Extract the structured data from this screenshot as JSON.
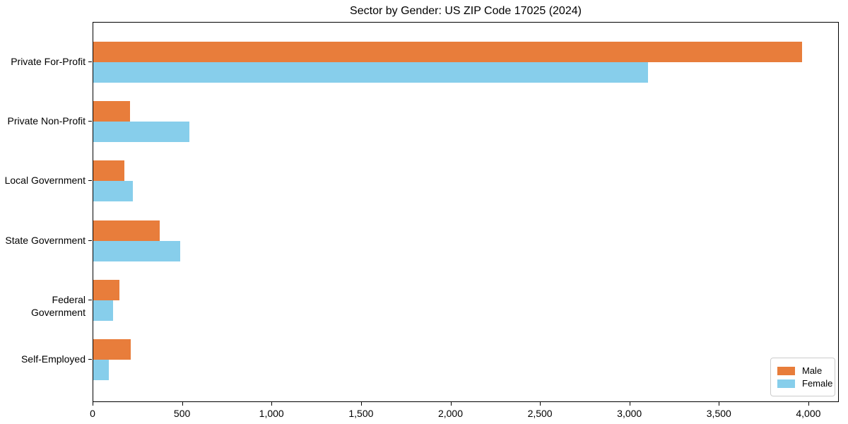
{
  "figure": {
    "title": "Sector by Gender: US ZIP Code 17025 (2024)"
  },
  "chart_data": {
    "type": "bar",
    "orientation": "horizontal",
    "title": "Sector by Gender: US ZIP Code 17025 (2024)",
    "categories": [
      "Private For-Profit",
      "Private Non-Profit",
      "Local Government",
      "State Government",
      "Federal Government",
      "Self-Employed"
    ],
    "series": [
      {
        "name": "Male",
        "color": "#e87d3b",
        "values": [
          3960,
          205,
          175,
          370,
          145,
          210
        ]
      },
      {
        "name": "Female",
        "color": "#87ceeb",
        "values": [
          3100,
          535,
          220,
          485,
          110,
          85
        ]
      }
    ],
    "xlabel": "",
    "ylabel": "",
    "xlim": [
      0,
      4170
    ],
    "xticks": [
      0,
      500,
      1000,
      1500,
      2000,
      2500,
      3000,
      3500,
      4000
    ],
    "xtick_labels": [
      "0",
      "500",
      "1,000",
      "1,500",
      "2,000",
      "2,500",
      "3,000",
      "3,500",
      "4,000"
    ],
    "grid": false,
    "background": "#ffffff",
    "axis_color": "#000000",
    "legend": {
      "position": "lower right",
      "items": [
        "Male",
        "Female"
      ]
    }
  }
}
